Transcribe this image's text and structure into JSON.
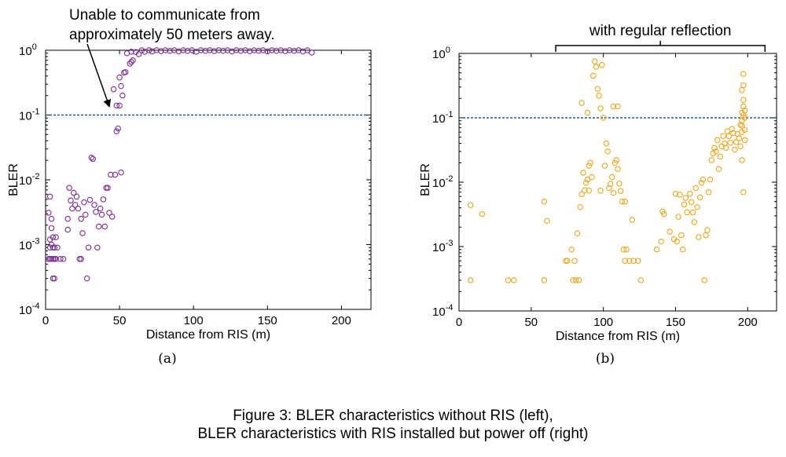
{
  "caption": {
    "line1": "Figure 3: BLER characteristics without RIS (left),",
    "line2": "BLER characteristics with RIS installed but power off (right)"
  },
  "chart_data": [
    {
      "type": "scatter",
      "panel_label": "(a)",
      "xlabel": "Distance from RIS (m)",
      "ylabel": "BLER",
      "xlim": [
        0,
        220
      ],
      "ylim": [
        0.0001,
        1
      ],
      "yscale": "log",
      "xticks": [
        "0",
        "50",
        "100",
        "150",
        "200"
      ],
      "yticks": [
        {
          "base": "10",
          "exp": "0"
        },
        {
          "base": "10",
          "exp": "-1"
        },
        {
          "base": "10",
          "exp": "-2"
        },
        {
          "base": "10",
          "exp": "-3"
        },
        {
          "base": "10",
          "exp": "-4"
        }
      ],
      "marker_color": "#7b2f94",
      "threshold": 0.1,
      "threshold_color": "#1f5f8b",
      "annotation": {
        "line1": "Unable to communicate from",
        "line2": "approximately 50 meters away.",
        "arrow_target": [
          43,
          0.11
        ]
      },
      "points": [
        [
          2,
          0.0006
        ],
        [
          3,
          0.0006
        ],
        [
          3,
          0.0009
        ],
        [
          3,
          0.0012
        ],
        [
          4,
          0.0018
        ],
        [
          4,
          0.0006
        ],
        [
          4,
          0.001
        ],
        [
          5,
          0.0003
        ],
        [
          5,
          0.0006
        ],
        [
          5,
          0.0009
        ],
        [
          5,
          0.0013
        ],
        [
          6,
          0.0003
        ],
        [
          6,
          0.0006
        ],
        [
          6,
          0.0009
        ],
        [
          7,
          0.0013
        ],
        [
          7,
          0.0006
        ],
        [
          8,
          0.0009
        ],
        [
          10,
          0.0006
        ],
        [
          12,
          0.0006
        ],
        [
          2,
          0.0031
        ],
        [
          3,
          0.0055
        ],
        [
          4,
          0.0025
        ],
        [
          15,
          0.0017
        ],
        [
          15,
          0.0025
        ],
        [
          16,
          0.0075
        ],
        [
          17,
          0.0048
        ],
        [
          18,
          0.0036
        ],
        [
          19,
          0.0063
        ],
        [
          20,
          0.0041
        ],
        [
          21,
          0.0055
        ],
        [
          22,
          0.0036
        ],
        [
          23,
          0.0006
        ],
        [
          24,
          0.0006
        ],
        [
          24,
          0.0025
        ],
        [
          25,
          0.0015
        ],
        [
          26,
          0.0045
        ],
        [
          27,
          0.0029
        ],
        [
          28,
          0.0003
        ],
        [
          29,
          0.0009
        ],
        [
          30,
          0.0049
        ],
        [
          31,
          0.022
        ],
        [
          32,
          0.021
        ],
        [
          33,
          0.0041
        ],
        [
          34,
          0.0032
        ],
        [
          35,
          0.0009
        ],
        [
          36,
          0.0019
        ],
        [
          37,
          0.0036
        ],
        [
          38,
          0.0029
        ],
        [
          39,
          0.005
        ],
        [
          40,
          0.0019
        ],
        [
          41,
          0.0075
        ],
        [
          42,
          0.0075
        ],
        [
          43,
          0.0031
        ],
        [
          44,
          0.012
        ],
        [
          45,
          0.0027
        ],
        [
          46,
          0.25
        ],
        [
          47,
          0.012
        ],
        [
          48,
          0.14
        ],
        [
          49,
          0.062
        ],
        [
          50,
          0.14
        ],
        [
          51,
          0.013
        ],
        [
          52,
          0.2
        ],
        [
          53,
          0.45
        ],
        [
          54,
          0.46
        ],
        [
          50,
          0.38
        ],
        [
          48,
          0.056
        ],
        [
          51,
          0.28
        ],
        [
          55,
          0.9
        ],
        [
          57,
          0.62
        ],
        [
          58,
          0.66
        ],
        [
          58,
          0.95
        ],
        [
          59,
          0.7
        ],
        [
          61,
          0.94
        ],
        [
          63,
          0.87
        ],
        [
          65,
          1.0
        ],
        [
          67,
          0.95
        ],
        [
          70,
          1.0
        ],
        [
          72,
          0.96
        ],
        [
          75,
          1.0
        ],
        [
          78,
          0.97
        ],
        [
          81,
          1.0
        ],
        [
          84,
          0.98
        ],
        [
          87,
          1.0
        ],
        [
          90,
          0.96
        ],
        [
          93,
          1.0
        ],
        [
          96,
          0.98
        ],
        [
          99,
          1.0
        ],
        [
          102,
          0.95
        ],
        [
          105,
          1.0
        ],
        [
          108,
          0.98
        ],
        [
          111,
          1.0
        ],
        [
          114,
          0.97
        ],
        [
          117,
          1.0
        ],
        [
          120,
          0.98
        ],
        [
          123,
          1.0
        ],
        [
          126,
          0.96
        ],
        [
          129,
          1.0
        ],
        [
          132,
          0.98
        ],
        [
          135,
          1.0
        ],
        [
          138,
          0.97
        ],
        [
          141,
          1.0
        ],
        [
          144,
          0.98
        ],
        [
          147,
          1.0
        ],
        [
          150,
          0.96
        ],
        [
          153,
          1.0
        ],
        [
          156,
          0.98
        ],
        [
          159,
          1.0
        ],
        [
          162,
          0.97
        ],
        [
          165,
          1.0
        ],
        [
          168,
          0.98
        ],
        [
          171,
          1.0
        ],
        [
          174,
          0.96
        ],
        [
          177,
          1.0
        ],
        [
          180,
          0.92
        ]
      ]
    },
    {
      "type": "scatter",
      "panel_label": "(b)",
      "xlabel": "Distance from RIS (m)",
      "ylabel": "BLER",
      "xlim": [
        0,
        220
      ],
      "ylim": [
        0.0001,
        1
      ],
      "yscale": "log",
      "xticks": [
        "0",
        "50",
        "100",
        "150",
        "200"
      ],
      "yticks": [
        {
          "base": "10",
          "exp": "0"
        },
        {
          "base": "10",
          "exp": "-1"
        },
        {
          "base": "10",
          "exp": "-2"
        },
        {
          "base": "10",
          "exp": "-3"
        },
        {
          "base": "10",
          "exp": "-4"
        }
      ],
      "marker_color": "#e8a820",
      "threshold": 0.1,
      "threshold_color": "#1f5f8b",
      "annotation": {
        "text": "with regular reflection",
        "bracket_x": [
          67,
          212
        ]
      },
      "points": [
        [
          8,
          0.0044
        ],
        [
          8,
          0.0003
        ],
        [
          16,
          0.0032
        ],
        [
          34,
          0.0003
        ],
        [
          38,
          0.0003
        ],
        [
          59,
          0.0003
        ],
        [
          59,
          0.005
        ],
        [
          61,
          0.0025
        ],
        [
          74,
          0.0006
        ],
        [
          75,
          0.0006
        ],
        [
          78,
          0.0009
        ],
        [
          79,
          0.0003
        ],
        [
          80,
          0.0006
        ],
        [
          81,
          0.0003
        ],
        [
          82,
          0.0016
        ],
        [
          83,
          0.0003
        ],
        [
          84,
          0.0041
        ],
        [
          85,
          0.0065
        ],
        [
          85,
          0.17
        ],
        [
          86,
          0.014
        ],
        [
          87,
          0.0075
        ],
        [
          88,
          0.0098
        ],
        [
          89,
          0.12
        ],
        [
          89,
          0.011
        ],
        [
          90,
          0.0074
        ],
        [
          90,
          0.018
        ],
        [
          91,
          0.02
        ],
        [
          92,
          0.012
        ],
        [
          93,
          0.45
        ],
        [
          94,
          0.75
        ],
        [
          95,
          0.62
        ],
        [
          96,
          0.28
        ],
        [
          97,
          0.22
        ],
        [
          98,
          0.14
        ],
        [
          99,
          0.66
        ],
        [
          100,
          0.1
        ],
        [
          98,
          0.0074
        ],
        [
          101,
          0.018
        ],
        [
          102,
          0.04
        ],
        [
          103,
          0.03
        ],
        [
          104,
          0.0081
        ],
        [
          105,
          0.0094
        ],
        [
          106,
          0.012
        ],
        [
          107,
          0.15
        ],
        [
          107,
          0.0068
        ],
        [
          108,
          0.02
        ],
        [
          109,
          0.022
        ],
        [
          110,
          0.016
        ],
        [
          110,
          0.15
        ],
        [
          111,
          0.0095
        ],
        [
          112,
          0.0073
        ],
        [
          113,
          0.005
        ],
        [
          114,
          0.0009
        ],
        [
          115,
          0.0006
        ],
        [
          115,
          0.005
        ],
        [
          116,
          0.0009
        ],
        [
          118,
          0.0006
        ],
        [
          120,
          0.0026
        ],
        [
          121,
          0.0006
        ],
        [
          124,
          0.0006
        ],
        [
          126,
          0.0003
        ],
        [
          137,
          0.0009
        ],
        [
          140,
          0.0012
        ],
        [
          141,
          0.0035
        ],
        [
          142,
          0.0032
        ],
        [
          146,
          0.0017
        ],
        [
          149,
          0.0013
        ],
        [
          150,
          0.0066
        ],
        [
          151,
          0.0012
        ],
        [
          152,
          0.0029
        ],
        [
          153,
          0.0064
        ],
        [
          154,
          0.0015
        ],
        [
          155,
          0.0009
        ],
        [
          156,
          0.0045
        ],
        [
          157,
          0.0057
        ],
        [
          158,
          0.0034
        ],
        [
          160,
          0.0066
        ],
        [
          161,
          0.0049
        ],
        [
          162,
          0.0034
        ],
        [
          163,
          0.0024
        ],
        [
          164,
          0.0081
        ],
        [
          165,
          0.0041
        ],
        [
          166,
          0.0014
        ],
        [
          167,
          0.0058
        ],
        [
          168,
          0.0098
        ],
        [
          169,
          0.011
        ],
        [
          170,
          0.0003
        ],
        [
          171,
          0.0015
        ],
        [
          172,
          0.0018
        ],
        [
          173,
          0.007
        ],
        [
          174,
          0.011
        ],
        [
          175,
          0.022
        ],
        [
          176,
          0.028
        ],
        [
          177,
          0.034
        ],
        [
          178,
          0.03
        ],
        [
          179,
          0.045
        ],
        [
          180,
          0.016
        ],
        [
          181,
          0.025
        ],
        [
          182,
          0.036
        ],
        [
          183,
          0.052
        ],
        [
          184,
          0.04
        ],
        [
          185,
          0.034
        ],
        [
          186,
          0.062
        ],
        [
          187,
          0.052
        ],
        [
          188,
          0.041
        ],
        [
          189,
          0.067
        ],
        [
          190,
          0.058
        ],
        [
          191,
          0.032
        ],
        [
          192,
          0.042
        ],
        [
          193,
          0.056
        ],
        [
          194,
          0.048
        ],
        [
          195,
          0.078
        ],
        [
          196,
          0.022
        ],
        [
          197,
          0.007
        ],
        [
          195,
          0.036
        ],
        [
          196,
          0.06
        ],
        [
          196,
          0.09
        ],
        [
          196,
          0.12
        ],
        [
          197,
          0.15
        ],
        [
          197,
          0.19
        ],
        [
          198,
          0.045
        ],
        [
          198,
          0.065
        ],
        [
          198,
          0.1
        ],
        [
          198,
          0.13
        ],
        [
          196,
          0.27
        ],
        [
          197,
          0.32
        ],
        [
          197,
          0.48
        ],
        [
          196,
          0.075
        ],
        [
          197,
          0.11
        ]
      ]
    }
  ]
}
